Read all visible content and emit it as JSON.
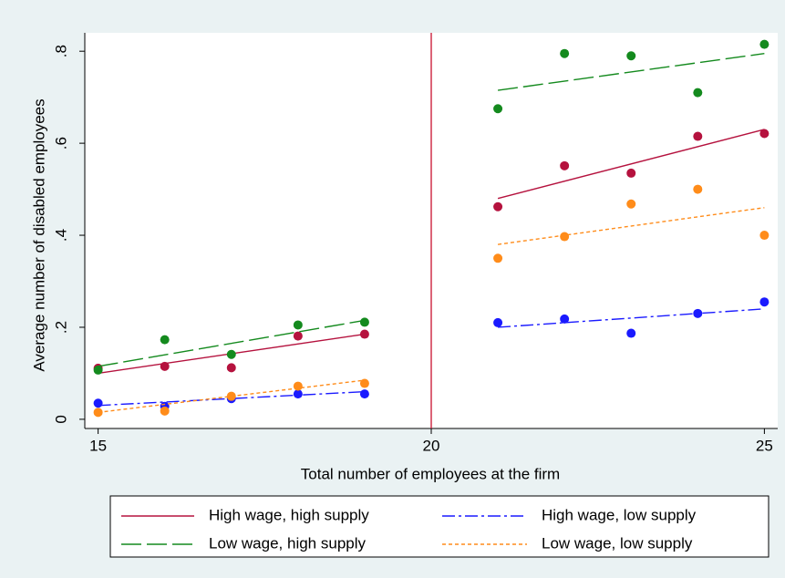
{
  "chart_data": {
    "type": "scatter",
    "x_label": "Total number of employees at the firm",
    "y_label": "Average number of disabled employees",
    "xlim": [
      14.8,
      25.2
    ],
    "ylim": [
      -0.02,
      0.84
    ],
    "xticks": [
      15,
      20,
      25
    ],
    "yticks": [
      {
        "value": 0,
        "label": "0"
      },
      {
        "value": 0.2,
        "label": ".2"
      },
      {
        "value": 0.4,
        "label": ".4"
      },
      {
        "value": 0.6,
        "label": ".6"
      },
      {
        "value": 0.8,
        "label": ".8"
      }
    ],
    "vline": 20,
    "vline_color": "#c8102e",
    "x": [
      15,
      16,
      17,
      18,
      19,
      21,
      22,
      23,
      24,
      25
    ],
    "series": [
      {
        "name": "High wage, high supply",
        "color": "#b5123e",
        "dash": "",
        "values": [
          0.111,
          0.115,
          0.112,
          0.181,
          0.185,
          0.462,
          0.551,
          0.535,
          0.615,
          0.621
        ],
        "fits": [
          {
            "x": [
              15,
              19
            ],
            "values": [
              0.1,
              0.185
            ]
          },
          {
            "x": [
              21,
              25
            ],
            "values": [
              0.48,
              0.63
            ]
          }
        ]
      },
      {
        "name": "High wage, low supply",
        "color": "#1a1aff",
        "dash": "14 4 3 4",
        "values": [
          0.035,
          0.028,
          0.045,
          0.055,
          0.055,
          0.21,
          0.218,
          0.187,
          0.23,
          0.255
        ],
        "fits": [
          {
            "x": [
              15,
              19
            ],
            "values": [
              0.03,
              0.06
            ]
          },
          {
            "x": [
              21,
              25
            ],
            "values": [
              0.2,
              0.24
            ]
          }
        ]
      },
      {
        "name": "Low wage, high supply",
        "color": "#148a1e",
        "dash": "22 6",
        "values": [
          0.107,
          0.173,
          0.141,
          0.205,
          0.211,
          0.675,
          0.795,
          0.79,
          0.71,
          0.815
        ],
        "fits": [
          {
            "x": [
              15,
              19
            ],
            "values": [
              0.115,
              0.215
            ]
          },
          {
            "x": [
              21,
              25
            ],
            "values": [
              0.715,
              0.795
            ]
          }
        ]
      },
      {
        "name": "Low wage, low supply",
        "color": "#ff8c1a",
        "dash": "4 3",
        "values": [
          0.015,
          0.018,
          0.05,
          0.072,
          0.078,
          0.35,
          0.397,
          0.468,
          0.5,
          0.4
        ],
        "fits": [
          {
            "x": [
              15,
              19
            ],
            "values": [
              0.015,
              0.085
            ]
          },
          {
            "x": [
              21,
              25
            ],
            "values": [
              0.38,
              0.46
            ]
          }
        ]
      }
    ]
  }
}
